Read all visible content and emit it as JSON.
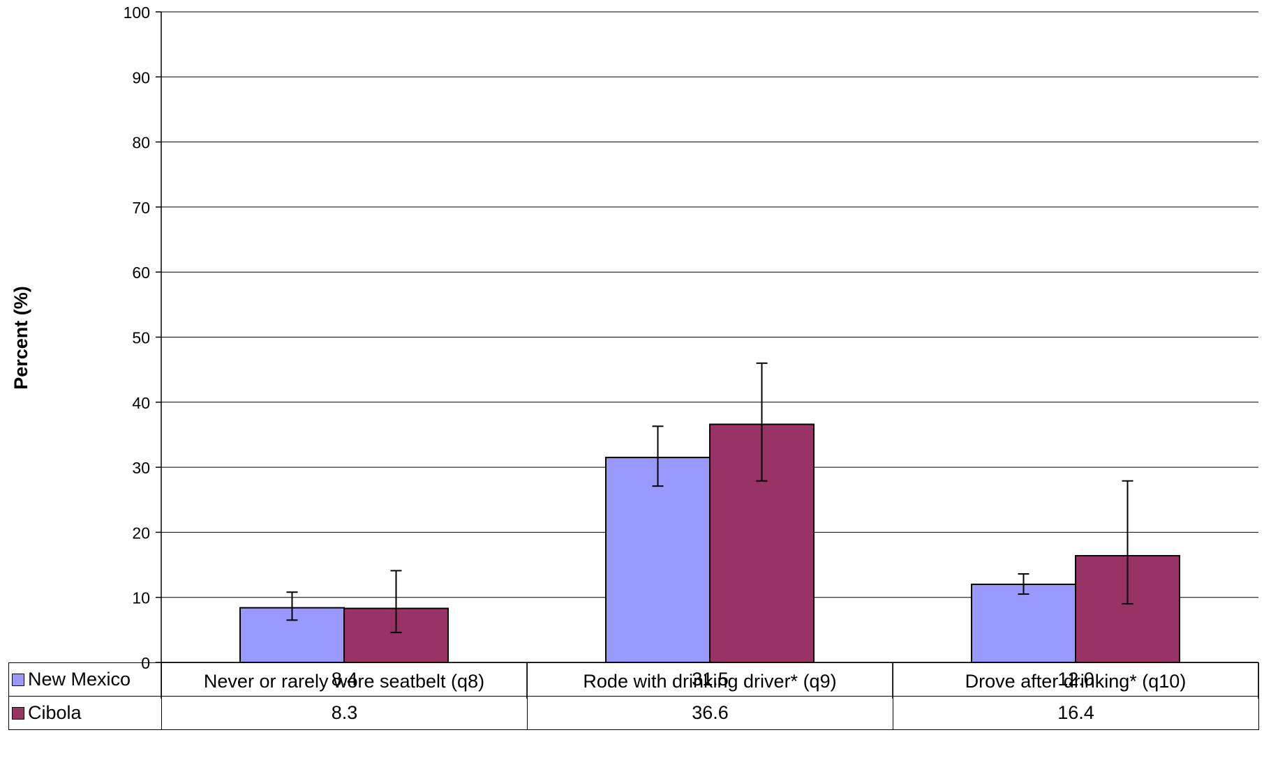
{
  "chart_data": {
    "type": "bar",
    "title": "",
    "xlabel": "",
    "ylabel": "Percent (%)",
    "ylim": [
      0,
      100
    ],
    "yticks": [
      0,
      10,
      20,
      30,
      40,
      50,
      60,
      70,
      80,
      90,
      100
    ],
    "grid": true,
    "legend": "data table",
    "categories": [
      "Never or rarely wore seatbelt (q8)",
      "Rode with drinking driver* (q9)",
      "Drove after drinking* (q10)"
    ],
    "series": [
      {
        "name": "New Mexico",
        "color": "#9999FF",
        "values": [
          8.4,
          31.5,
          12.0
        ],
        "display": [
          "8.4",
          "31.5",
          "12.0"
        ],
        "error_low": [
          6.5,
          27.1,
          10.5
        ],
        "error_high": [
          10.8,
          36.3,
          13.6
        ]
      },
      {
        "name": "Cibola",
        "color": "#993366",
        "values": [
          8.3,
          36.6,
          16.4
        ],
        "display": [
          "8.3",
          "36.6",
          "16.4"
        ],
        "error_low": [
          4.6,
          27.9,
          9.0
        ],
        "error_high": [
          14.1,
          46.0,
          27.9
        ]
      }
    ]
  }
}
